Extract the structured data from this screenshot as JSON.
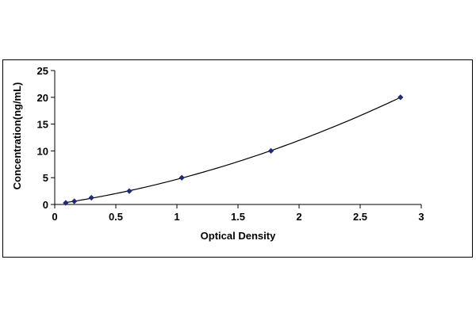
{
  "chart_data": {
    "type": "scatter",
    "xlabel": "Optical Density",
    "ylabel": "Concentration(ng/mL)",
    "xlim": [
      0,
      3
    ],
    "ylim": [
      0,
      25
    ],
    "x_ticks": [
      0,
      0.5,
      1,
      1.5,
      2,
      2.5,
      3
    ],
    "x_tick_labels": [
      "0",
      "0.5",
      "1",
      "1.5",
      "2",
      "2.5",
      "3"
    ],
    "y_ticks": [
      0,
      5,
      10,
      15,
      20,
      25
    ],
    "y_tick_labels": [
      "0",
      "5",
      "10",
      "15",
      "20",
      "25"
    ],
    "grid": false,
    "legend": "none",
    "series": [
      {
        "points": [
          {
            "x": 0.09,
            "y": 0.3
          },
          {
            "x": 0.16,
            "y": 0.6
          },
          {
            "x": 0.3,
            "y": 1.25
          },
          {
            "x": 0.61,
            "y": 2.5
          },
          {
            "x": 1.04,
            "y": 5
          },
          {
            "x": 1.77,
            "y": 10
          },
          {
            "x": 2.83,
            "y": 20
          }
        ],
        "trendline": "polynomial",
        "marker": "diamond",
        "color": "#1f2a78"
      }
    ]
  }
}
